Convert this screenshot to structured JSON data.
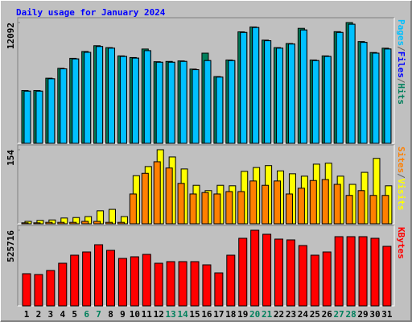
{
  "chart_data": [
    {
      "type": "bar",
      "title": "Daily usage for January 2024",
      "title_color": "#0000ff",
      "legend_separator": "/",
      "separator_color": "#606060",
      "ylim": [
        0,
        12092
      ],
      "yticks": [
        12092
      ],
      "series": [
        {
          "name": "Hits",
          "color": "#00805c",
          "values": [
            5280,
            5280,
            6520,
            7510,
            8510,
            9193,
            9773,
            9580,
            8750,
            8590,
            9441,
            8170,
            8199,
            8250,
            7430,
            9027,
            6680,
            8340,
            11160,
            11650,
            10330,
            9580,
            9990,
            11512,
            8340,
            8750,
            11180,
            12092,
            10187,
            9090,
            9524
          ]
        },
        {
          "name": "Files",
          "color": "#0000ff",
          "values": [
            5218,
            5218,
            6460,
            7454,
            8448,
            9110,
            9690,
            9524,
            8696,
            8530,
            9276,
            8116,
            8116,
            8199,
            7371,
            8282,
            6626,
            8282,
            11098,
            11595,
            10270,
            9524,
            9938,
            11346,
            8282,
            8696,
            11098,
            11920,
            10104,
            9027,
            9441
          ]
        },
        {
          "name": "Pages",
          "color": "#00c0ff",
          "values": [
            5218,
            5218,
            6460,
            7454,
            8448,
            9110,
            9690,
            9524,
            8696,
            8530,
            9276,
            8116,
            8116,
            8199,
            7371,
            8282,
            6626,
            8282,
            11098,
            11595,
            10270,
            9524,
            9938,
            11346,
            8282,
            8696,
            11098,
            11920,
            10104,
            9027,
            9441
          ]
        }
      ]
    },
    {
      "type": "bar",
      "ylim": [
        0,
        154
      ],
      "yticks": [
        154
      ],
      "series": [
        {
          "name": "Visits",
          "color": "#ffff00",
          "values": [
            5,
            7,
            8,
            12,
            13,
            15,
            27,
            30,
            15,
            100,
            119,
            154,
            139,
            114,
            80,
            69,
            80,
            79,
            109,
            117,
            121,
            110,
            104,
            99,
            124,
            126,
            99,
            82,
            107,
            136,
            79
          ]
        },
        {
          "name": "Sites",
          "color": "#ff8000",
          "values": [
            2,
            2,
            3,
            3,
            3,
            5,
            5,
            3,
            3,
            62,
            105,
            129,
            116,
            84,
            62,
            65,
            62,
            67,
            67,
            89,
            80,
            89,
            62,
            74,
            90,
            92,
            82,
            59,
            69,
            59,
            59
          ]
        }
      ]
    },
    {
      "type": "bar",
      "ylim": [
        0,
        525716
      ],
      "yticks": [
        525716
      ],
      "categories": [
        "1",
        "2",
        "3",
        "4",
        "5",
        "6",
        "7",
        "8",
        "9",
        "10",
        "11",
        "12",
        "13",
        "14",
        "15",
        "16",
        "17",
        "18",
        "19",
        "20",
        "21",
        "22",
        "23",
        "24",
        "25",
        "26",
        "27",
        "28",
        "29",
        "30",
        "31"
      ],
      "label_colors": [
        "#000000",
        "#000000",
        "#000000",
        "#000000",
        "#000000",
        "#00805c",
        "#00805c",
        "#000000",
        "#000000",
        "#000000",
        "#000000",
        "#000000",
        "#00805c",
        "#00805c",
        "#000000",
        "#000000",
        "#000000",
        "#000000",
        "#000000",
        "#00805c",
        "#00805c",
        "#000000",
        "#000000",
        "#000000",
        "#000000",
        "#000000",
        "#00805c",
        "#00805c",
        "#000000",
        "#000000",
        "#000000"
      ],
      "series": [
        {
          "name": "KBytes",
          "color": "#ff0000",
          "values": [
            223720,
            218127,
            246092,
            296429,
            352359,
            374731,
            425068,
            385917,
            329987,
            341173,
            357952,
            296429,
            307615,
            307615,
            307615,
            285243,
            229313,
            352359,
            469804,
            525716,
            497777,
            464219,
            458626,
            419475,
            352359,
            374731,
            480998,
            480998,
            480998,
            469804,
            413882
          ]
        }
      ]
    }
  ]
}
